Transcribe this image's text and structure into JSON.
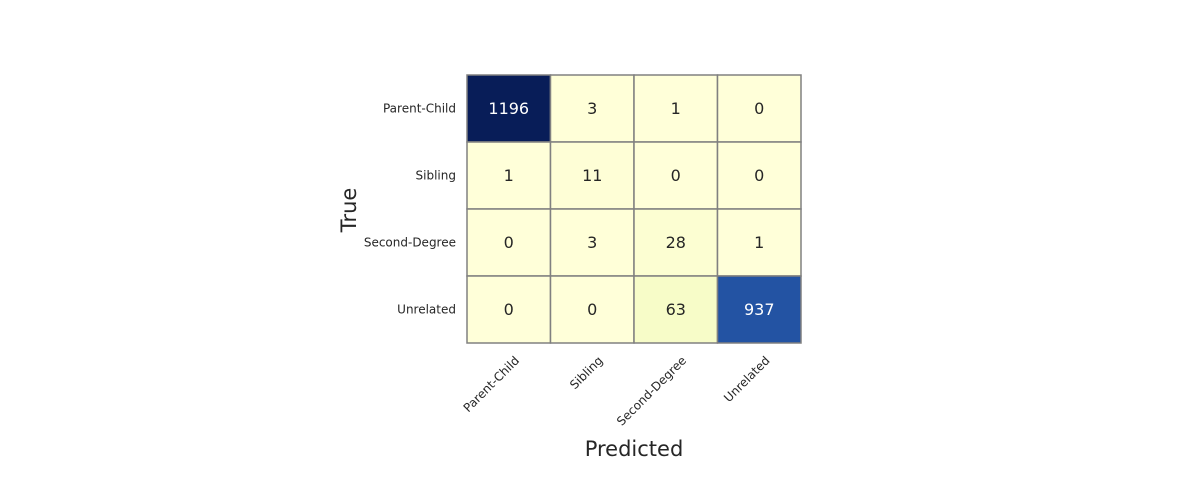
{
  "chart_data": {
    "type": "heatmap",
    "title": "",
    "xlabel": "Predicted",
    "ylabel": "True",
    "x_categories": [
      "Parent-Child",
      "Sibling",
      "Second-Degree",
      "Unrelated"
    ],
    "y_categories": [
      "Parent-Child",
      "Sibling",
      "Second-Degree",
      "Unrelated"
    ],
    "values": [
      [
        1196,
        3,
        1,
        0
      ],
      [
        1,
        11,
        0,
        0
      ],
      [
        0,
        3,
        28,
        1
      ],
      [
        0,
        0,
        63,
        937
      ]
    ],
    "colormap": "YlGnBu",
    "value_range": [
      0,
      1196
    ],
    "colorbar": false,
    "cell_border_color": "#808080"
  }
}
